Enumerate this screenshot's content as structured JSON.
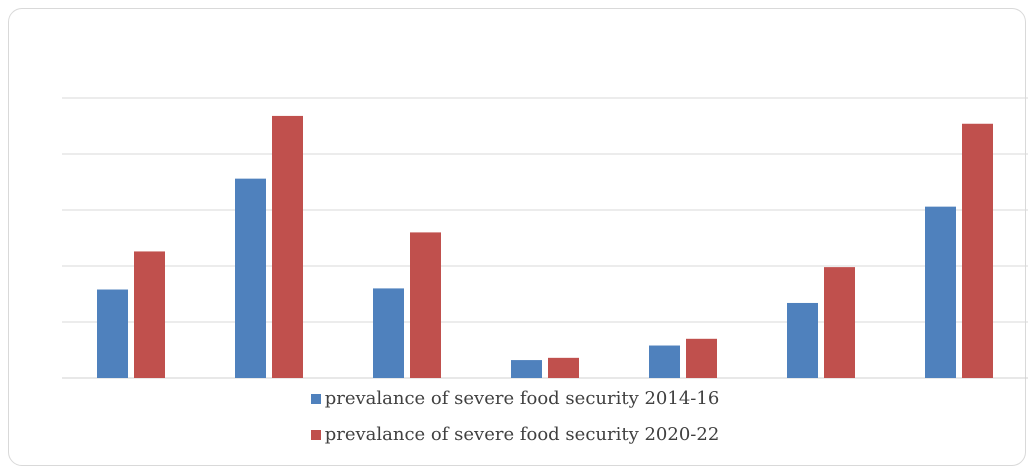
{
  "chart_data": {
    "type": "bar",
    "categories": [
      "",
      "",
      "",
      "",
      "",
      "",
      ""
    ],
    "series": [
      {
        "name": "prevalance of severe food security 2014-16",
        "color": "#4f81bd",
        "values": [
          7.9,
          17.8,
          8.0,
          1.6,
          2.9,
          6.7,
          15.3
        ]
      },
      {
        "name": "prevalance of severe food security 2020-22",
        "color": "#c0504d",
        "values": [
          11.3,
          23.4,
          13.0,
          1.8,
          3.5,
          9.9,
          22.7
        ]
      }
    ],
    "ylim": [
      0,
      25
    ],
    "gridlines": [
      0,
      5,
      10,
      15,
      20,
      25
    ],
    "grid": true,
    "legend_position": "bottom",
    "title": "",
    "xlabel": "",
    "ylabel": ""
  }
}
